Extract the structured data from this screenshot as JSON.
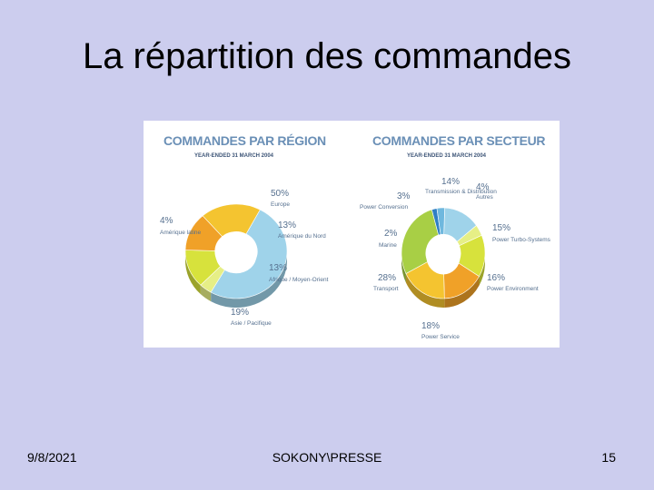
{
  "slide": {
    "title": "La répartition des commandes",
    "footer_date": "9/8/2021",
    "footer_center": "SOKONY\\PRESSE",
    "page_number": "15"
  },
  "colors": {
    "heading": "#6a8fb6",
    "subheading": "#3d5577",
    "label": "#56708f"
  },
  "chart_data": [
    {
      "type": "pie",
      "title": "COMMANDES PAR RÉGION",
      "subtitle": "YEAR-ENDED 31 MARCH 2004",
      "slices": [
        {
          "label": "Europe",
          "value": 50,
          "value_text": "50%",
          "color": "#9fd3ea"
        },
        {
          "label": "Amérique latine",
          "value": 4,
          "value_text": "4%",
          "color": "#e6ef86"
        },
        {
          "label": "Amérique du Nord",
          "value": 13,
          "value_text": "13%",
          "color": "#d7e23c"
        },
        {
          "label": "Afrique / Moyen-Orient",
          "value": 13,
          "value_text": "13%",
          "color": "#f0a128"
        },
        {
          "label": "Asie / Pacifique",
          "value": 19,
          "value_text": "19%",
          "color": "#f4c430"
        }
      ]
    },
    {
      "type": "pie",
      "title": "COMMANDES PAR SECTEUR",
      "subtitle": "YEAR-ENDED 31 MARCH 2004",
      "slices": [
        {
          "label": "Transmission & Distribution",
          "value": 14,
          "value_text": "14%",
          "color": "#9fd3ea"
        },
        {
          "label": "Autres",
          "value": 4,
          "value_text": "4%",
          "color": "#e6ef86"
        },
        {
          "label": "Power Turbo-Systems",
          "value": 15,
          "value_text": "15%",
          "color": "#d7e23c"
        },
        {
          "label": "Power Environment",
          "value": 16,
          "value_text": "16%",
          "color": "#f0a128"
        },
        {
          "label": "Power Service",
          "value": 18,
          "value_text": "18%",
          "color": "#f4c430"
        },
        {
          "label": "Transport",
          "value": 28,
          "value_text": "28%",
          "color": "#a8cf45"
        },
        {
          "label": "Marine",
          "value": 2,
          "value_text": "2%",
          "color": "#2f7fc4"
        },
        {
          "label": "Power Conversion",
          "value": 3,
          "value_text": "3%",
          "color": "#6fb8de"
        }
      ]
    }
  ]
}
